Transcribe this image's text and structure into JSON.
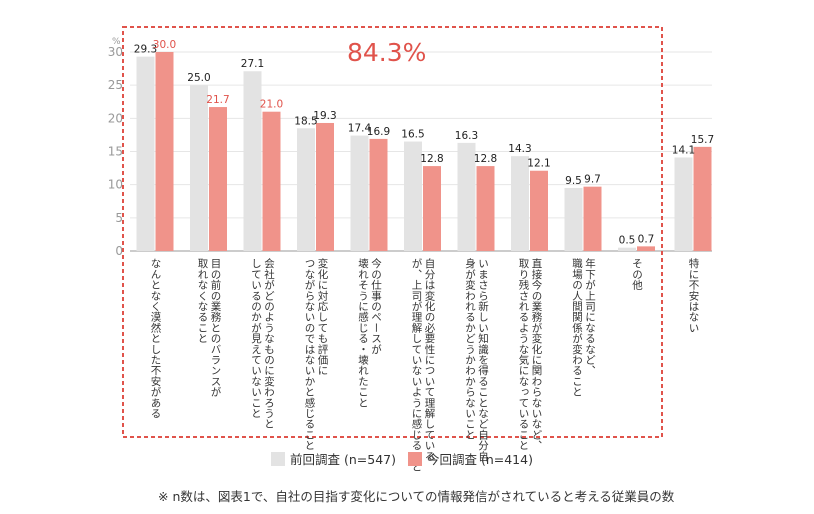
{
  "chart_data": {
    "type": "bar",
    "ylim": [
      0,
      30
    ],
    "yticks": [
      0,
      5,
      10,
      15,
      20,
      25,
      30
    ],
    "yunit": "%",
    "highlight_value": "84.3%",
    "categories": [
      "なんとなく漠然とした不安がある",
      "目の前の業務とのバランスが\n取れなくなること",
      "会社がどのようなものに変わろうと\nしているのかが見えていないこと",
      "変化に対応しても評価に\nつながらないのではないかと感じること",
      "今の仕事のペースが\n壊れそうに感じる・壊れたこと",
      "自分は変化の必要性について理解している\nが、上司が理解していないように感じること",
      "いまさら新しい知識を得ることなど自分自\n身が変われるかどうかわからないこと",
      "直接今の業務が変化に関わらないなど、\n取り残されるような気になっていること",
      "年下が上司になるなど、\n職場の人間関係が変わること",
      "その他",
      "特に不安はない"
    ],
    "series": [
      {
        "name": "前回調査 (n=547)",
        "values": [
          29.3,
          25.0,
          27.1,
          18.5,
          17.4,
          16.5,
          16.3,
          14.3,
          9.5,
          0.5,
          14.1
        ]
      },
      {
        "name": "今回調査 (n=414)",
        "values": [
          30.0,
          21.7,
          21.0,
          19.3,
          16.9,
          12.8,
          12.8,
          12.1,
          9.7,
          0.7,
          15.7
        ]
      }
    ],
    "value_labels": [
      [
        "29.3",
        "25.0",
        "27.1",
        "18.5",
        "17.4",
        "16.5",
        "16.3",
        "14.3",
        "9.5",
        "0.5",
        "14.1"
      ],
      [
        "30.0",
        "21.7",
        "21.0",
        "19.3",
        "16.9",
        "12.8",
        "12.8",
        "12.1",
        "9.7",
        "0.7",
        "15.7"
      ]
    ],
    "colors": {
      "previous": "#e3e3e3",
      "current": "#f0938a",
      "current_label_red": "#e0534b",
      "frame": "#e0534b",
      "axis_text": "#999999"
    },
    "legend_position": "bottom"
  },
  "legend": {
    "previous": "前回調査 (n=547)",
    "current": "今回調査 (n=414)"
  },
  "note": "※ n数は、図表1で、自社の目指す変化についての情報発信がされていると考える従業員の数"
}
